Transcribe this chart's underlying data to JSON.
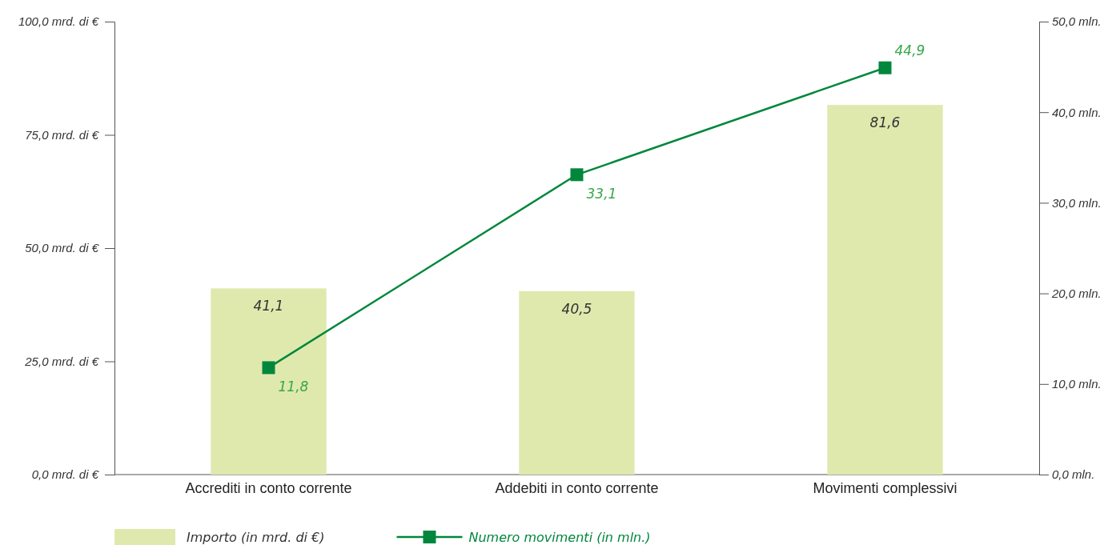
{
  "chart_data": {
    "type": "bar",
    "categories": [
      "Accrediti in conto corrente",
      "Addebiti in conto corrente",
      "Movimenti complessivi"
    ],
    "series": [
      {
        "name": "Importo (in mrd. di €)",
        "color": "#dfe9ae",
        "values": [
          41.1,
          40.5,
          81.6
        ],
        "value_labels": [
          "41,1",
          "40,5",
          "81,6"
        ]
      },
      {
        "name": "Numero movimenti (in mln.)",
        "type": "line",
        "axis": "y2",
        "color": "#00873c",
        "values": [
          11.8,
          33.1,
          44.9
        ],
        "value_labels": [
          "11,8",
          "33,1",
          "44,9"
        ],
        "marker": "square",
        "line_style": "solid"
      }
    ],
    "ylim": [
      0,
      100
    ],
    "yticks": [
      {
        "value": 0,
        "label": "0,0 mrd. di €"
      },
      {
        "value": 25,
        "label": "25,0 mrd. di €"
      },
      {
        "value": 50,
        "label": "50,0 mrd. di €"
      },
      {
        "value": 75,
        "label": "75,0 mrd. di €"
      },
      {
        "value": 100,
        "label": "100,0 mrd. di €"
      }
    ],
    "y2lim": [
      0,
      50
    ],
    "y2ticks": [
      {
        "value": 0,
        "label": "0,0 mln."
      },
      {
        "value": 10,
        "label": "10,0 mln."
      },
      {
        "value": 20,
        "label": "20,0 mln."
      },
      {
        "value": 30,
        "label": "30,0 mln."
      },
      {
        "value": 40,
        "label": "40,0 mln."
      },
      {
        "value": 50,
        "label": "50,0 mln."
      }
    ],
    "grid": false,
    "legend": "bottom left"
  }
}
